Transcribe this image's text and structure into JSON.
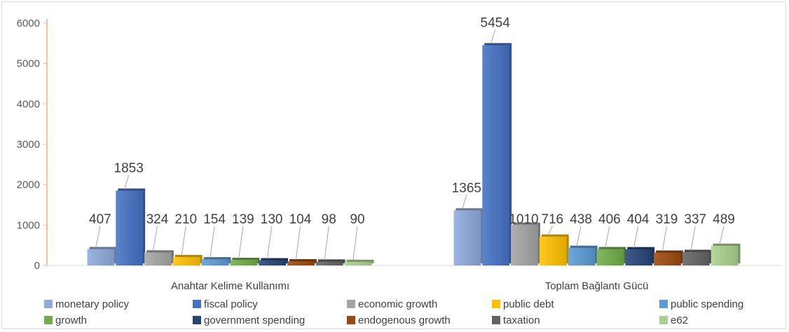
{
  "chart_data": {
    "type": "bar",
    "categories": [
      "Anahtar Kelime Kullanımı",
      "Toplam Bağlantı Gücü"
    ],
    "series": [
      {
        "name": "monetary policy",
        "values": [
          407,
          1365
        ],
        "color": "#8eaadb"
      },
      {
        "name": "fiscal policy",
        "values": [
          1853,
          5454
        ],
        "color": "#4472c4"
      },
      {
        "name": "economic growth",
        "values": [
          324,
          1010
        ],
        "color": "#a5a5a5"
      },
      {
        "name": "public debt",
        "values": [
          210,
          716
        ],
        "color": "#ffc000"
      },
      {
        "name": "public spending",
        "values": [
          154,
          438
        ],
        "color": "#5b9bd5"
      },
      {
        "name": "growth",
        "values": [
          139,
          406
        ],
        "color": "#70ad47"
      },
      {
        "name": "government spending",
        "values": [
          130,
          404
        ],
        "color": "#264478"
      },
      {
        "name": "endogenous growth",
        "values": [
          104,
          319
        ],
        "color": "#9e480e"
      },
      {
        "name": "taxation",
        "values": [
          98,
          337
        ],
        "color": "#636363"
      },
      {
        "name": "e62",
        "values": [
          90,
          489
        ],
        "color": "#a9d18e"
      }
    ],
    "yticks": [
      "0",
      "1000",
      "2000",
      "3000",
      "4000",
      "5000",
      "6000"
    ],
    "ylim": [
      0,
      6000
    ],
    "grid": false,
    "legend_position": "bottom"
  }
}
